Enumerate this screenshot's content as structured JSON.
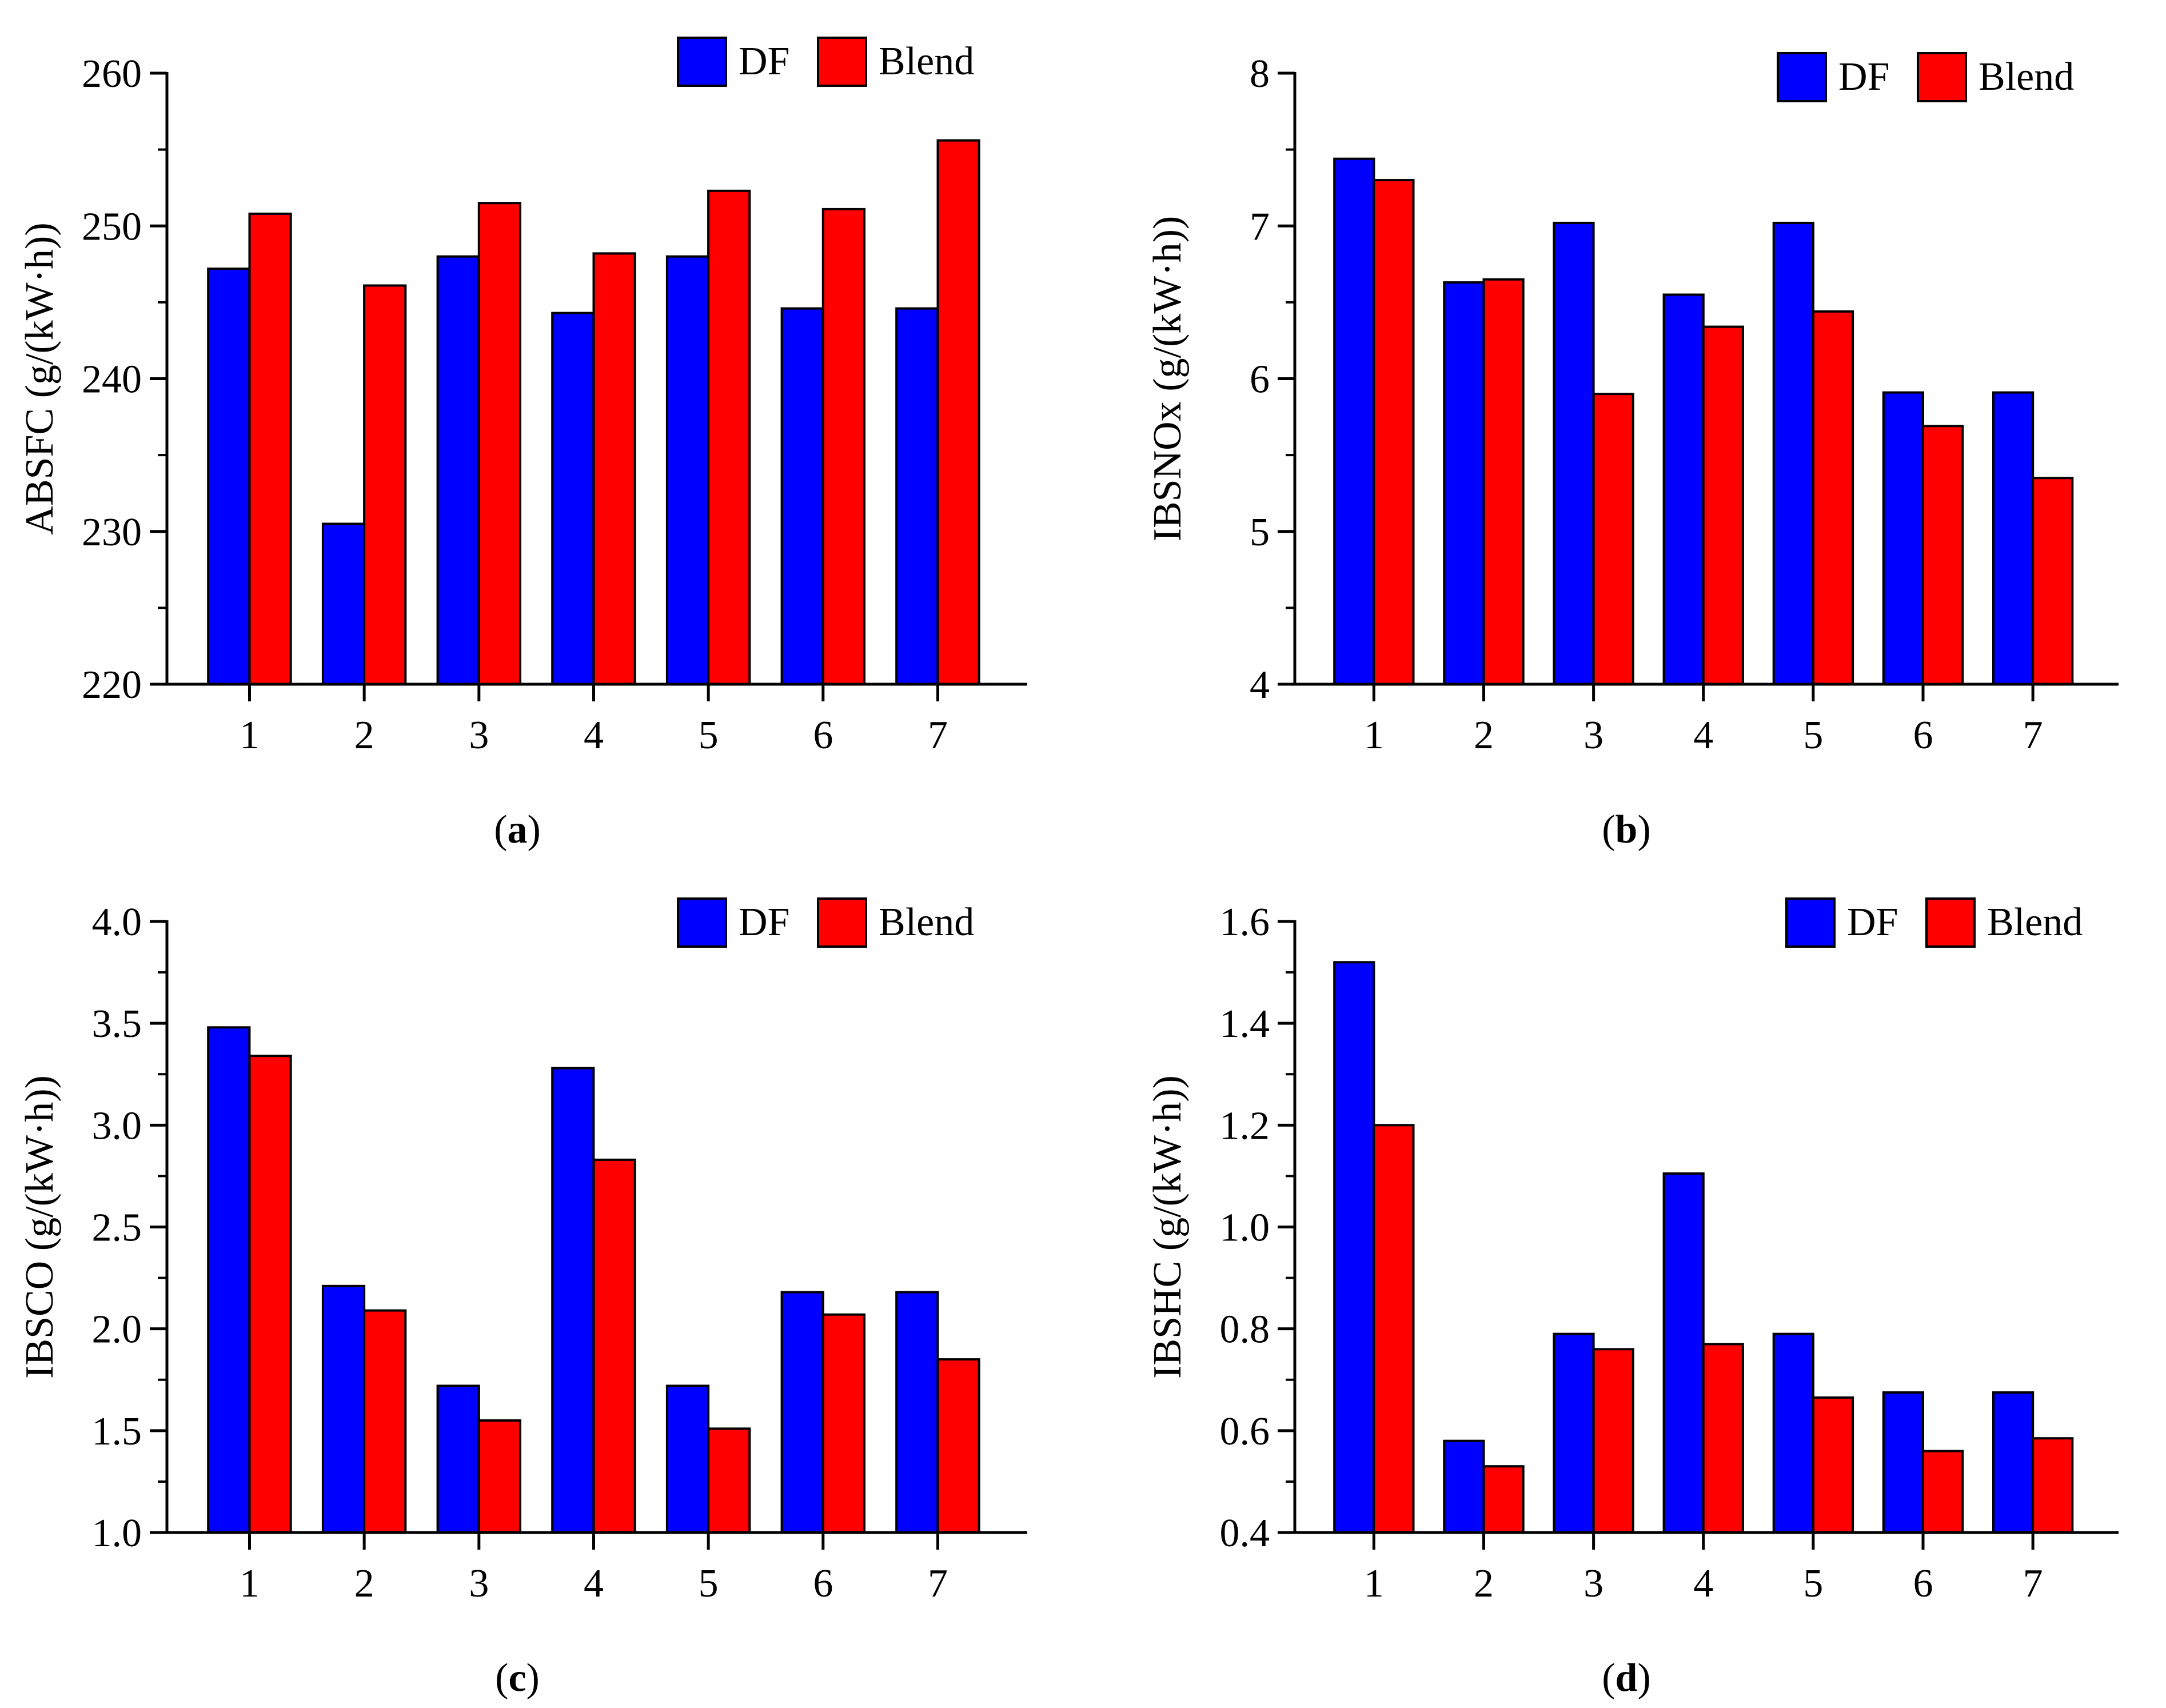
{
  "colors": {
    "df": "#0000FF",
    "blend": "#FF0000",
    "axis": "#000000"
  },
  "chart_data": [
    {
      "type": "bar",
      "panel": "a",
      "caption": {
        "open": "(",
        "letter": "a",
        "close": ")"
      },
      "categories": [
        "1",
        "2",
        "3",
        "4",
        "5",
        "6",
        "7"
      ],
      "series": [
        {
          "name": "DF",
          "values": [
            247.2,
            230.5,
            248.0,
            244.3,
            248.0,
            244.6,
            244.6
          ]
        },
        {
          "name": "Blend",
          "values": [
            250.8,
            246.1,
            251.5,
            248.2,
            252.3,
            251.1,
            255.6
          ]
        }
      ],
      "ylabel": "ABSFC (g/(kW·h))",
      "xlabel": "",
      "ylim": [
        220,
        260
      ],
      "yticks": [
        "220",
        "230",
        "240",
        "250",
        "260"
      ],
      "legend": "top-right"
    },
    {
      "type": "bar",
      "panel": "b",
      "caption": {
        "open": "(",
        "letter": "b",
        "close": ")"
      },
      "categories": [
        "1",
        "2",
        "3",
        "4",
        "5",
        "6",
        "7"
      ],
      "series": [
        {
          "name": "DF",
          "values": [
            7.44,
            6.63,
            7.02,
            6.55,
            7.02,
            5.91,
            5.91
          ]
        },
        {
          "name": "Blend",
          "values": [
            7.3,
            6.65,
            5.9,
            6.34,
            6.44,
            5.69,
            5.35
          ]
        }
      ],
      "ylabel": "IBSNOx (g/(kW·h))",
      "xlabel": "",
      "ylim": [
        4,
        8
      ],
      "yticks": [
        "4",
        "5",
        "6",
        "7",
        "8"
      ],
      "legend": "top-right"
    },
    {
      "type": "bar",
      "panel": "c",
      "caption": {
        "open": "(",
        "letter": "c",
        "close": ")"
      },
      "categories": [
        "1",
        "2",
        "3",
        "4",
        "5",
        "6",
        "7"
      ],
      "series": [
        {
          "name": "DF",
          "values": [
            3.48,
            2.21,
            1.72,
            3.28,
            1.72,
            2.18,
            2.18
          ]
        },
        {
          "name": "Blend",
          "values": [
            3.34,
            2.09,
            1.55,
            2.83,
            1.51,
            2.07,
            1.85
          ]
        }
      ],
      "ylabel": "IBSCO (g/(kW·h))",
      "xlabel": "",
      "ylim": [
        1.0,
        4.0
      ],
      "yticks": [
        "1.0",
        "1.5",
        "2.0",
        "2.5",
        "3.0",
        "3.5",
        "4.0"
      ],
      "legend": "top-right"
    },
    {
      "type": "bar",
      "panel": "d",
      "caption": {
        "open": "(",
        "letter": "d",
        "close": ")"
      },
      "categories": [
        "1",
        "2",
        "3",
        "4",
        "5",
        "6",
        "7"
      ],
      "series": [
        {
          "name": "DF",
          "values": [
            1.52,
            0.58,
            0.79,
            1.105,
            0.79,
            0.675,
            0.675
          ]
        },
        {
          "name": "Blend",
          "values": [
            1.2,
            0.53,
            0.76,
            0.77,
            0.665,
            0.56,
            0.585
          ]
        }
      ],
      "ylabel": "IBSHC (g/(kW·h))",
      "xlabel": "",
      "ylim": [
        0.4,
        1.6
      ],
      "yticks": [
        "0.4",
        "0.6",
        "0.8",
        "1.0",
        "1.2",
        "1.4",
        "1.6"
      ],
      "legend": "top-right"
    }
  ]
}
